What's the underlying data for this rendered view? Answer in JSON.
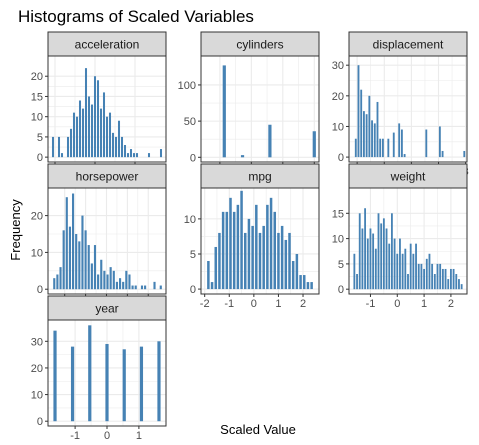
{
  "chart_data": {
    "type": "bar",
    "title": "Histograms of Scaled Variables",
    "xlabel": "Scaled Value",
    "ylabel": "Frequency",
    "bar_color": "#4682B4",
    "strip_color": "#D9D9D9",
    "panel_border_color": "#333333",
    "grid_color": "#EBEBEB",
    "grid": true,
    "panels": [
      {
        "name": "acceleration",
        "xlim": [
          -2.35,
          3.55
        ],
        "ylim": [
          -1.2,
          25
        ],
        "xticks": [
          -2,
          0,
          2
        ],
        "xtick_labels": [
          "-2",
          "0",
          "2"
        ],
        "yticks": [
          0,
          5,
          10,
          15,
          20
        ],
        "ytick_labels": [
          "0",
          "5",
          "10",
          "15",
          "20"
        ],
        "bins": [
          [
            -2.1,
            5
          ],
          [
            -1.95,
            0
          ],
          [
            -1.8,
            5
          ],
          [
            -1.65,
            1
          ],
          [
            -1.5,
            0
          ],
          [
            -1.35,
            5
          ],
          [
            -1.2,
            7
          ],
          [
            -1.05,
            11
          ],
          [
            -0.9,
            10
          ],
          [
            -0.75,
            14
          ],
          [
            -0.6,
            12
          ],
          [
            -0.45,
            22
          ],
          [
            -0.3,
            15
          ],
          [
            -0.15,
            13
          ],
          [
            0,
            20
          ],
          [
            0.15,
            19
          ],
          [
            0.3,
            12
          ],
          [
            0.45,
            16
          ],
          [
            0.6,
            10
          ],
          [
            0.75,
            11
          ],
          [
            0.9,
            6
          ],
          [
            1.05,
            5
          ],
          [
            1.2,
            9
          ],
          [
            1.35,
            5
          ],
          [
            1.5,
            3
          ],
          [
            1.65,
            1
          ],
          [
            1.8,
            2
          ],
          [
            1.95,
            1
          ],
          [
            2.1,
            1
          ],
          [
            2.25,
            0
          ],
          [
            2.4,
            0
          ],
          [
            2.55,
            0
          ],
          [
            2.7,
            1
          ],
          [
            2.85,
            0
          ],
          [
            3.0,
            0
          ],
          [
            3.15,
            0
          ],
          [
            3.3,
            2
          ]
        ]
      },
      {
        "name": "cylinders",
        "xlim": [
          -1.6,
          2.15
        ],
        "ylim": [
          -6.5,
          140
        ],
        "xticks": [
          -1,
          0,
          1,
          2
        ],
        "xtick_labels": [
          "-1",
          "0",
          "1",
          "2"
        ],
        "yticks": [
          0,
          50,
          100
        ],
        "ytick_labels": [
          "0",
          "50",
          "100"
        ],
        "bins": [
          [
            -0.86,
            127
          ],
          [
            -0.28,
            3
          ],
          [
            0.3,
            0
          ],
          [
            0.59,
            45
          ],
          [
            1.48,
            0
          ],
          [
            2.0,
            36
          ]
        ]
      },
      {
        "name": "displacement",
        "xlim": [
          -1.3,
          3.05
        ],
        "ylim": [
          -1.6,
          33
        ],
        "xticks": [
          -1,
          0,
          1,
          2,
          3
        ],
        "xtick_labels": [
          "-1",
          "0",
          "1",
          "2",
          "3"
        ],
        "yticks": [
          0,
          10,
          20,
          30
        ],
        "ytick_labels": [
          "0",
          "10",
          "20",
          "30"
        ],
        "bins": [
          [
            -1.05,
            6
          ],
          [
            -0.95,
            30
          ],
          [
            -0.85,
            22
          ],
          [
            -0.75,
            15
          ],
          [
            -0.65,
            14
          ],
          [
            -0.55,
            20
          ],
          [
            -0.45,
            12
          ],
          [
            -0.35,
            11
          ],
          [
            -0.25,
            18
          ],
          [
            -0.15,
            6
          ],
          [
            -0.05,
            6
          ],
          [
            0.05,
            0
          ],
          [
            0.15,
            6
          ],
          [
            0.25,
            0
          ],
          [
            0.35,
            8
          ],
          [
            0.45,
            0
          ],
          [
            0.55,
            11
          ],
          [
            0.65,
            9
          ],
          [
            0.75,
            1
          ],
          [
            0.85,
            0
          ],
          [
            0.95,
            0
          ],
          [
            1.05,
            0
          ],
          [
            1.15,
            0
          ],
          [
            1.25,
            0
          ],
          [
            1.35,
            0
          ],
          [
            1.45,
            0
          ],
          [
            1.55,
            9
          ],
          [
            1.65,
            0
          ],
          [
            1.75,
            0
          ],
          [
            1.85,
            0
          ],
          [
            1.95,
            0
          ],
          [
            2.05,
            10
          ],
          [
            2.15,
            2
          ],
          [
            2.25,
            0
          ],
          [
            2.35,
            0
          ],
          [
            2.45,
            0
          ],
          [
            2.55,
            0
          ],
          [
            2.65,
            0
          ],
          [
            2.75,
            0
          ],
          [
            2.85,
            0
          ],
          [
            2.95,
            2
          ]
        ]
      },
      {
        "name": "horsepower",
        "xlim": [
          -1.8,
          3.85
        ],
        "ylim": [
          -1.3,
          27.5
        ],
        "xticks": [
          -1,
          0,
          1,
          2,
          3
        ],
        "xtick_labels": [
          "-1",
          "0",
          "1",
          "2",
          "3"
        ],
        "yticks": [
          0,
          10,
          20
        ],
        "ytick_labels": [
          "0",
          "10",
          "20"
        ],
        "bins": [
          [
            -1.5,
            3
          ],
          [
            -1.35,
            4
          ],
          [
            -1.2,
            6
          ],
          [
            -1.05,
            16
          ],
          [
            -0.9,
            25
          ],
          [
            -0.75,
            17
          ],
          [
            -0.6,
            26
          ],
          [
            -0.45,
            15
          ],
          [
            -0.3,
            13
          ],
          [
            -0.15,
            20
          ],
          [
            0,
            16
          ],
          [
            0.15,
            12
          ],
          [
            0.3,
            7
          ],
          [
            0.45,
            12
          ],
          [
            0.6,
            4
          ],
          [
            0.75,
            8
          ],
          [
            0.9,
            5
          ],
          [
            1.05,
            4
          ],
          [
            1.2,
            6
          ],
          [
            1.35,
            5
          ],
          [
            1.5,
            2
          ],
          [
            1.65,
            3
          ],
          [
            1.8,
            2
          ],
          [
            1.95,
            5
          ],
          [
            2.1,
            4
          ],
          [
            2.25,
            1
          ],
          [
            2.4,
            1
          ],
          [
            2.55,
            0
          ],
          [
            2.7,
            1
          ],
          [
            2.85,
            1
          ],
          [
            3.0,
            0
          ],
          [
            3.15,
            0
          ],
          [
            3.3,
            2
          ],
          [
            3.45,
            0
          ],
          [
            3.6,
            1
          ]
        ]
      },
      {
        "name": "mpg",
        "xlim": [
          -2.15,
          2.65
        ],
        "ylim": [
          -0.7,
          14.4
        ],
        "xticks": [
          -2,
          -1,
          0,
          1,
          2
        ],
        "xtick_labels": [
          "-2",
          "-1",
          "0",
          "1",
          "2"
        ],
        "yticks": [
          0,
          5,
          10
        ],
        "ytick_labels": [
          "0",
          "5",
          "10"
        ],
        "bins": [
          [
            -1.85,
            4
          ],
          [
            -1.7,
            1
          ],
          [
            -1.55,
            6
          ],
          [
            -1.4,
            8
          ],
          [
            -1.25,
            11
          ],
          [
            -1.1,
            11
          ],
          [
            -0.95,
            13
          ],
          [
            -0.8,
            11
          ],
          [
            -0.65,
            12
          ],
          [
            -0.5,
            14
          ],
          [
            -0.35,
            8
          ],
          [
            -0.2,
            10
          ],
          [
            -0.05,
            9
          ],
          [
            0.1,
            12
          ],
          [
            0.25,
            8
          ],
          [
            0.4,
            9
          ],
          [
            0.55,
            12
          ],
          [
            0.7,
            13
          ],
          [
            0.85,
            11
          ],
          [
            1.0,
            8
          ],
          [
            1.15,
            9
          ],
          [
            1.3,
            7
          ],
          [
            1.45,
            8
          ],
          [
            1.6,
            4
          ],
          [
            1.75,
            5
          ],
          [
            1.9,
            2
          ],
          [
            2.05,
            2
          ],
          [
            2.2,
            1
          ],
          [
            2.35,
            1
          ]
        ]
      },
      {
        "name": "weight",
        "xlim": [
          -1.8,
          2.6
        ],
        "ylim": [
          -0.95,
          20
        ],
        "xticks": [
          -1,
          0,
          1,
          2
        ],
        "xtick_labels": [
          "-1",
          "0",
          "1",
          "2"
        ],
        "yticks": [
          0,
          5,
          10,
          15
        ],
        "ytick_labels": [
          "0",
          "5",
          "10",
          "15"
        ],
        "bins": [
          [
            -1.6,
            7
          ],
          [
            -1.5,
            3
          ],
          [
            -1.4,
            15
          ],
          [
            -1.3,
            12
          ],
          [
            -1.2,
            16
          ],
          [
            -1.1,
            10
          ],
          [
            -1.0,
            12
          ],
          [
            -0.9,
            11
          ],
          [
            -0.8,
            8
          ],
          [
            -0.7,
            15
          ],
          [
            -0.6,
            13
          ],
          [
            -0.5,
            14
          ],
          [
            -0.4,
            12
          ],
          [
            -0.3,
            9
          ],
          [
            -0.2,
            15
          ],
          [
            -0.1,
            10
          ],
          [
            0,
            7
          ],
          [
            0.1,
            10
          ],
          [
            0.2,
            7
          ],
          [
            0.3,
            8
          ],
          [
            0.4,
            3
          ],
          [
            0.5,
            9
          ],
          [
            0.6,
            7
          ],
          [
            0.7,
            9
          ],
          [
            0.8,
            5
          ],
          [
            0.9,
            5
          ],
          [
            1.0,
            4
          ],
          [
            1.1,
            6
          ],
          [
            1.2,
            7
          ],
          [
            1.3,
            5
          ],
          [
            1.4,
            3
          ],
          [
            1.5,
            5
          ],
          [
            1.6,
            5
          ],
          [
            1.7,
            4
          ],
          [
            1.8,
            4
          ],
          [
            1.9,
            2
          ],
          [
            2.0,
            4
          ],
          [
            2.1,
            4
          ],
          [
            2.2,
            3
          ],
          [
            2.3,
            2
          ],
          [
            2.4,
            1
          ]
        ]
      },
      {
        "name": "year",
        "xlim": [
          -1.85,
          1.85
        ],
        "ylim": [
          -1.8,
          38
        ],
        "xticks": [
          -1,
          0,
          1
        ],
        "xtick_labels": [
          "-1",
          "0",
          "1"
        ],
        "yticks": [
          0,
          10,
          20,
          30
        ],
        "ytick_labels": [
          "0",
          "10",
          "20",
          "30"
        ],
        "bins": [
          [
            -1.63,
            34
          ],
          [
            -1.08,
            28
          ],
          [
            -0.54,
            36
          ],
          [
            0.0,
            29
          ],
          [
            0.54,
            27
          ],
          [
            1.08,
            28
          ],
          [
            1.63,
            30
          ]
        ]
      }
    ]
  }
}
